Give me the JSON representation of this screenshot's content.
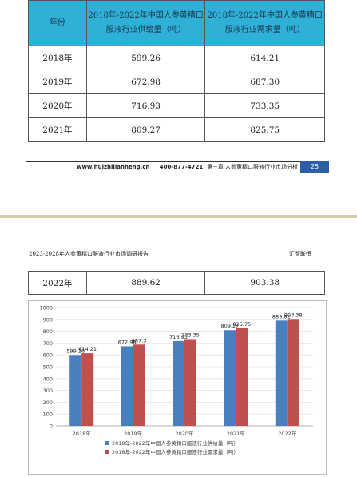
{
  "page1": {
    "table": {
      "headers": [
        "年份",
        "2018年-2022年中国人参黄精口服液行业供给量（吨）",
        "2018年-2022年中国人参黄精口服液行业需求量（吨）"
      ],
      "rows": [
        [
          "2018年",
          "599.26",
          "614.21"
        ],
        [
          "2019年",
          "672.98",
          "687.30"
        ],
        [
          "2020年",
          "716.93",
          "733.35"
        ],
        [
          "2021年",
          "809.27",
          "825.75"
        ]
      ]
    },
    "footer": {
      "website": "www.huizhilianheng.cn",
      "phone": "400-877-4721",
      "separator": "|",
      "chapter": "第三章 人参黄精口服液行业市场分析",
      "page_number": "25"
    }
  },
  "page2": {
    "header": {
      "left": "2023-2028年人参黄精口服液行业市场调研报告",
      "right": "汇智联恒"
    },
    "table": {
      "rows": [
        [
          "2022年",
          "889.62",
          "903.38"
        ]
      ]
    }
  },
  "colors": {
    "header_bg": "#2fb0d6",
    "series_supply": "#4a7ebf",
    "series_demand": "#c0504d",
    "page_badge": "#2c5fa6"
  },
  "chart_data": {
    "type": "bar",
    "categories": [
      "2018年",
      "2019年",
      "2020年",
      "2021年",
      "2022年"
    ],
    "series": [
      {
        "name": "2018年-2022年中国人参黄精口服液行业供给量（吨）",
        "values": [
          599.26,
          672.98,
          716.93,
          809.27,
          889.62
        ],
        "labels": [
          "599.26",
          "672.98",
          "716.93",
          "809.27",
          "889.62"
        ]
      },
      {
        "name": "2018年-2022年中国人参黄精口服液行业需求量（吨）",
        "values": [
          614.21,
          687.3,
          733.35,
          825.75,
          903.38
        ],
        "labels": [
          "614.21",
          "687.3",
          "733.35",
          "825.75",
          "903.38"
        ]
      }
    ],
    "ylim": [
      0,
      1000
    ],
    "yticks": [
      0,
      100,
      200,
      300,
      400,
      500,
      600,
      700,
      800,
      900,
      1000
    ],
    "grid": true,
    "legend_position": "bottom"
  }
}
